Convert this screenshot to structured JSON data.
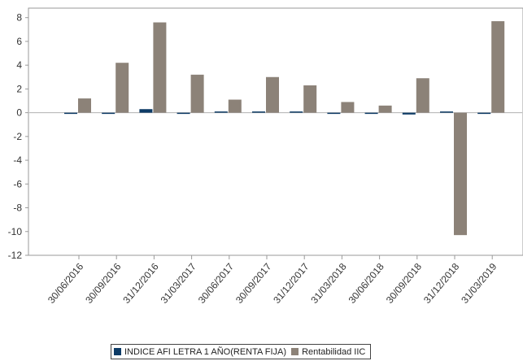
{
  "chart_data": {
    "type": "bar",
    "categories": [
      "30/06/2016",
      "30/09/2016",
      "31/12/2016",
      "31/03/2017",
      "30/06/2017",
      "30/09/2017",
      "31/12/2017",
      "31/03/2018",
      "30/06/2018",
      "30/09/2018",
      "31/12/2018",
      "31/03/2019"
    ],
    "series": [
      {
        "name": "INDICE AFI LETRA 1 AÑO(RENTA FIJA)",
        "color": "#0d3b66",
        "values": [
          -0.05,
          -0.05,
          0.3,
          -0.1,
          0.05,
          0.0,
          0.1,
          -0.1,
          -0.1,
          -0.15,
          0.1,
          -0.02
        ]
      },
      {
        "name": "Rentabilidad IIC",
        "color": "#8c8278",
        "values": [
          1.2,
          4.2,
          7.6,
          3.2,
          1.1,
          3.0,
          2.3,
          0.9,
          0.6,
          2.9,
          -10.3,
          7.7
        ]
      }
    ],
    "y_ticks": [
      8,
      6,
      4,
      2,
      0,
      -2,
      -4,
      -6,
      -8,
      -10,
      -12
    ],
    "ylim": [
      -12,
      8.8
    ],
    "grid": false,
    "legend_position": "bottom",
    "title": "",
    "xlabel": "",
    "ylabel": ""
  }
}
